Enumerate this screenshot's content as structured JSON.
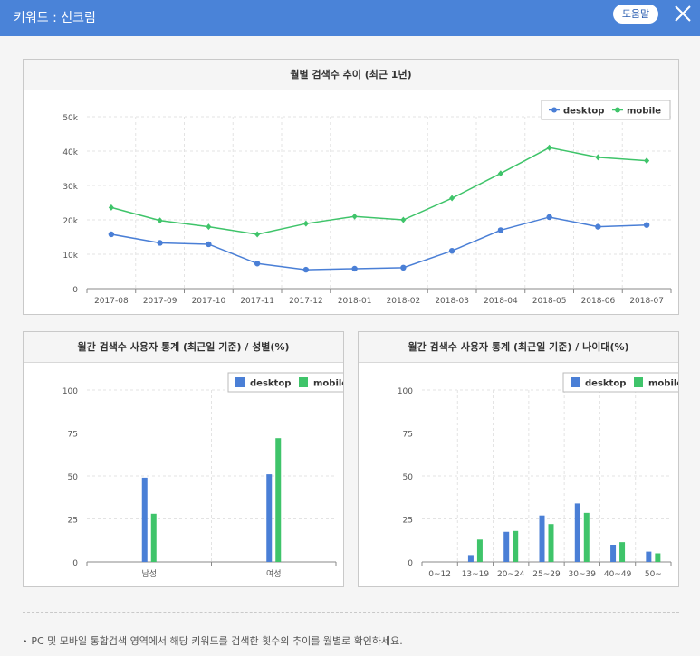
{
  "header": {
    "title": "키워드 : 선크림",
    "help_label": "도움말"
  },
  "footer": {
    "note": "PC 및 모바일 통합검색 영역에서 해당 키워드를 검색한 횟수의 추이를 월별로 확인하세요."
  },
  "colors": {
    "desktop": "#4a7fd6",
    "mobile": "#3fc46a",
    "header": "#4a83d8"
  },
  "chart_data": [
    {
      "type": "line",
      "title": "월별 검색수 추이 (최근 1년)",
      "x": [
        "2017-08",
        "2017-09",
        "2017-10",
        "2017-11",
        "2017-12",
        "2018-01",
        "2018-02",
        "2018-03",
        "2018-04",
        "2018-05",
        "2018-06",
        "2018-07"
      ],
      "series": [
        {
          "name": "desktop",
          "values": [
            15800,
            13300,
            12900,
            7300,
            5500,
            5800,
            6100,
            11000,
            17000,
            20800,
            18000,
            18500
          ]
        },
        {
          "name": "mobile",
          "values": [
            23600,
            19800,
            18000,
            15800,
            18900,
            21000,
            20000,
            26300,
            33500,
            41000,
            38200,
            37200
          ]
        }
      ],
      "yticks": [
        "0",
        "10k",
        "20k",
        "30k",
        "40k",
        "50k"
      ],
      "ylim": [
        0,
        50000
      ],
      "grid": true,
      "legend": "top-right"
    },
    {
      "type": "bar",
      "title": "월간 검색수 사용자 통계 (최근일 기준) / 성별(%)",
      "categories": [
        "남성",
        "여성"
      ],
      "series": [
        {
          "name": "desktop",
          "values": [
            49,
            51
          ]
        },
        {
          "name": "mobile",
          "values": [
            28,
            72
          ]
        }
      ],
      "yticks": [
        "0",
        "25",
        "50",
        "75",
        "100"
      ],
      "ylim": [
        0,
        100
      ],
      "grid": true,
      "legend": "top-right"
    },
    {
      "type": "bar",
      "title": "월간 검색수 사용자 통계 (최근일 기준) / 나이대(%)",
      "categories": [
        "0~12",
        "13~19",
        "20~24",
        "25~29",
        "30~39",
        "40~49",
        "50~"
      ],
      "series": [
        {
          "name": "desktop",
          "values": [
            0,
            4,
            17.5,
            27,
            34,
            10,
            6
          ]
        },
        {
          "name": "mobile",
          "values": [
            0,
            13,
            18,
            22,
            28.5,
            11.5,
            5
          ]
        }
      ],
      "yticks": [
        "0",
        "25",
        "50",
        "75",
        "100"
      ],
      "ylim": [
        0,
        100
      ],
      "grid": true,
      "legend": "top-right"
    }
  ]
}
